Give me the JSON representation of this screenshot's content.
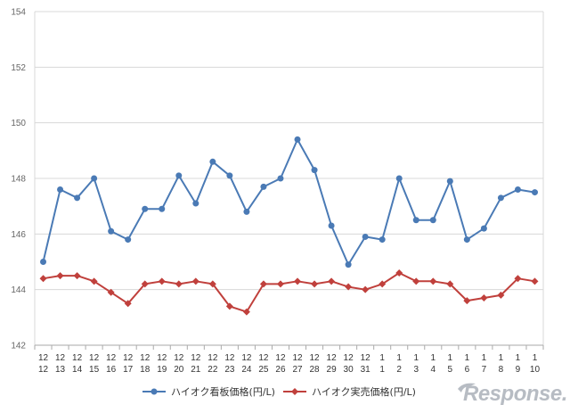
{
  "chart_data": {
    "type": "line",
    "categories": [
      [
        "12",
        "12"
      ],
      [
        "12",
        "13"
      ],
      [
        "12",
        "14"
      ],
      [
        "12",
        "15"
      ],
      [
        "12",
        "16"
      ],
      [
        "12",
        "17"
      ],
      [
        "12",
        "18"
      ],
      [
        "12",
        "19"
      ],
      [
        "12",
        "20"
      ],
      [
        "12",
        "21"
      ],
      [
        "12",
        "22"
      ],
      [
        "12",
        "23"
      ],
      [
        "12",
        "24"
      ],
      [
        "12",
        "25"
      ],
      [
        "12",
        "26"
      ],
      [
        "12",
        "27"
      ],
      [
        "12",
        "28"
      ],
      [
        "12",
        "29"
      ],
      [
        "12",
        "30"
      ],
      [
        "12",
        "31"
      ],
      [
        "1",
        "1"
      ],
      [
        "1",
        "2"
      ],
      [
        "1",
        "3"
      ],
      [
        "1",
        "4"
      ],
      [
        "1",
        "5"
      ],
      [
        "1",
        "6"
      ],
      [
        "1",
        "7"
      ],
      [
        "1",
        "8"
      ],
      [
        "1",
        "9"
      ],
      [
        "1",
        "10"
      ]
    ],
    "series": [
      {
        "name": "ハイオク看板価格(円/L)",
        "color": "#4a7ab5",
        "marker": "circle",
        "values": [
          145.0,
          147.6,
          147.3,
          148.0,
          146.1,
          145.8,
          146.9,
          146.9,
          148.1,
          147.1,
          148.6,
          148.1,
          146.8,
          147.7,
          148.0,
          149.4,
          148.3,
          146.3,
          144.9,
          145.9,
          145.8,
          148.0,
          146.5,
          146.5,
          147.9,
          145.8,
          146.2,
          147.3,
          147.6,
          147.5
        ]
      },
      {
        "name": "ハイオク実売価格(円/L)",
        "color": "#c0403c",
        "marker": "diamond",
        "values": [
          144.4,
          144.5,
          144.5,
          144.3,
          143.9,
          143.5,
          144.2,
          144.3,
          144.2,
          144.3,
          144.2,
          143.4,
          143.2,
          144.2,
          144.2,
          144.3,
          144.2,
          144.3,
          144.1,
          144.0,
          144.2,
          144.6,
          144.3,
          144.3,
          144.2,
          143.6,
          143.7,
          143.8,
          144.4,
          144.3
        ]
      }
    ],
    "ylim": [
      142,
      154
    ],
    "yticks": [
      142,
      144,
      146,
      148,
      150,
      152,
      154
    ],
    "grid": true,
    "legend_position": "bottom",
    "xlabel": "",
    "ylabel": ""
  },
  "watermark": "Response."
}
